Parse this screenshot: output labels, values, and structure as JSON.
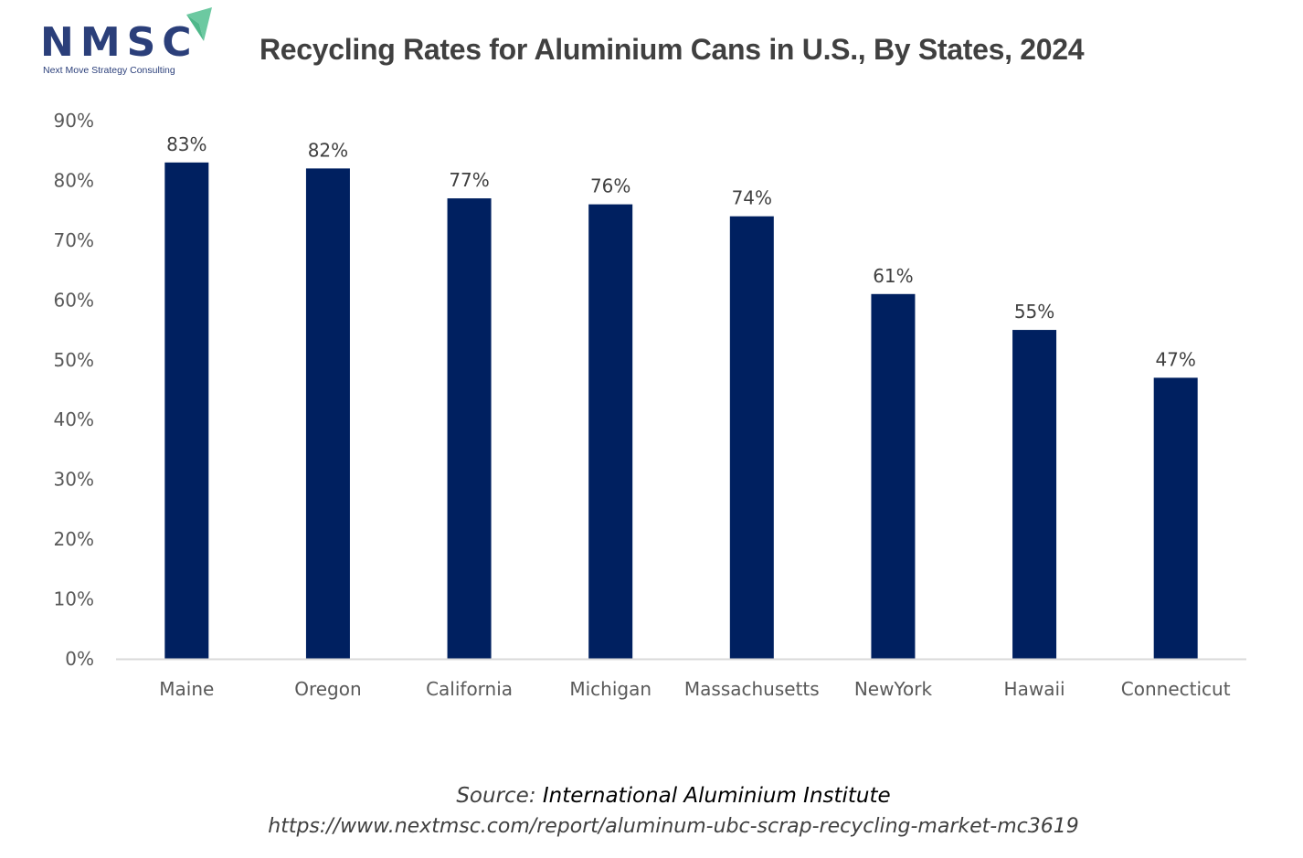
{
  "logo": {
    "name": "NMSC",
    "tagline": "Next Move Strategy Consulting",
    "brand_color": "#2b3f7a",
    "accent_color": "#6cc9a1"
  },
  "chart_data": {
    "type": "bar",
    "title": "Recycling Rates for Aluminium Cans in U.S., By States, 2024",
    "xlabel": "",
    "ylabel": "",
    "categories": [
      "Maine",
      "Oregon",
      "California",
      "Michigan",
      "Massachusetts",
      "NewYork",
      "Hawaii",
      "Connecticut"
    ],
    "values": [
      83,
      82,
      77,
      76,
      74,
      61,
      55,
      47
    ],
    "data_labels": [
      "83%",
      "82%",
      "77%",
      "76%",
      "74%",
      "61%",
      "55%",
      "47%"
    ],
    "ylim": [
      0,
      90
    ],
    "yticks": [
      0,
      10,
      20,
      30,
      40,
      50,
      60,
      70,
      80,
      90
    ],
    "ytick_labels": [
      "0%",
      "10%",
      "20%",
      "30%",
      "40%",
      "50%",
      "60%",
      "70%",
      "80%",
      "90%"
    ],
    "grid": false,
    "legend": "none",
    "bar_color": "#002060"
  },
  "source": {
    "prefix": "Source:",
    "name": "International Aluminium Institute",
    "url": "https://www.nextmsc.com/report/aluminum-ubc-scrap-recycling-market-mc3619"
  }
}
